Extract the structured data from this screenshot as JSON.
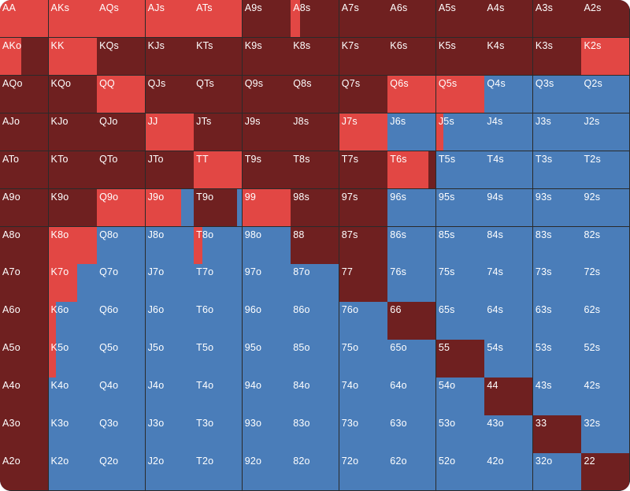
{
  "colors": {
    "raise": "#E24744",
    "call": "#6F2020",
    "fold": "#4A7DB9"
  },
  "hands": [
    [
      {
        "label": "AA",
        "raise": 1,
        "call": 0
      },
      {
        "label": "AKs",
        "raise": 1,
        "call": 0
      },
      {
        "label": "AQs",
        "raise": 1,
        "call": 0
      },
      {
        "label": "AJs",
        "raise": 1,
        "call": 0
      },
      {
        "label": "ATs",
        "raise": 1,
        "call": 0
      },
      {
        "label": "A9s",
        "raise": 0,
        "call": 1
      },
      {
        "label": "A8s",
        "raise": 0.2,
        "call": 0.8
      },
      {
        "label": "A7s",
        "raise": 0,
        "call": 1
      },
      {
        "label": "A6s",
        "raise": 0,
        "call": 1
      },
      {
        "label": "A5s",
        "raise": 0,
        "call": 1
      },
      {
        "label": "A4s",
        "raise": 0,
        "call": 1
      },
      {
        "label": "A3s",
        "raise": 0,
        "call": 1
      },
      {
        "label": "A2s",
        "raise": 0,
        "call": 1
      }
    ],
    [
      {
        "label": "AKo",
        "raise": 0.45,
        "call": 0.55
      },
      {
        "label": "KK",
        "raise": 1,
        "call": 0
      },
      {
        "label": "KQs",
        "raise": 0,
        "call": 1
      },
      {
        "label": "KJs",
        "raise": 0,
        "call": 1
      },
      {
        "label": "KTs",
        "raise": 0,
        "call": 1
      },
      {
        "label": "K9s",
        "raise": 0,
        "call": 1
      },
      {
        "label": "K8s",
        "raise": 0,
        "call": 1
      },
      {
        "label": "K7s",
        "raise": 0,
        "call": 1
      },
      {
        "label": "K6s",
        "raise": 0,
        "call": 1
      },
      {
        "label": "K5s",
        "raise": 0,
        "call": 1
      },
      {
        "label": "K4s",
        "raise": 0,
        "call": 1
      },
      {
        "label": "K3s",
        "raise": 0,
        "call": 1
      },
      {
        "label": "K2s",
        "raise": 1,
        "call": 0
      }
    ],
    [
      {
        "label": "AQo",
        "raise": 0,
        "call": 1
      },
      {
        "label": "KQo",
        "raise": 0,
        "call": 1
      },
      {
        "label": "QQ",
        "raise": 1,
        "call": 0
      },
      {
        "label": "QJs",
        "raise": 0,
        "call": 1
      },
      {
        "label": "QTs",
        "raise": 0,
        "call": 1
      },
      {
        "label": "Q9s",
        "raise": 0,
        "call": 1
      },
      {
        "label": "Q8s",
        "raise": 0,
        "call": 1
      },
      {
        "label": "Q7s",
        "raise": 0,
        "call": 1
      },
      {
        "label": "Q6s",
        "raise": 1,
        "call": 0
      },
      {
        "label": "Q5s",
        "raise": 1,
        "call": 0
      },
      {
        "label": "Q4s",
        "raise": 0,
        "call": 0
      },
      {
        "label": "Q3s",
        "raise": 0,
        "call": 0
      },
      {
        "label": "Q2s",
        "raise": 0,
        "call": 0
      }
    ],
    [
      {
        "label": "AJo",
        "raise": 0,
        "call": 1
      },
      {
        "label": "KJo",
        "raise": 0,
        "call": 1
      },
      {
        "label": "QJo",
        "raise": 0,
        "call": 1
      },
      {
        "label": "JJ",
        "raise": 1,
        "call": 0
      },
      {
        "label": "JTs",
        "raise": 0,
        "call": 1
      },
      {
        "label": "J9s",
        "raise": 0,
        "call": 1
      },
      {
        "label": "J8s",
        "raise": 0,
        "call": 1
      },
      {
        "label": "J7s",
        "raise": 1,
        "call": 0
      },
      {
        "label": "J6s",
        "raise": 0,
        "call": 0
      },
      {
        "label": "J5s",
        "raise": 0.15,
        "call": 0
      },
      {
        "label": "J4s",
        "raise": 0,
        "call": 0
      },
      {
        "label": "J3s",
        "raise": 0,
        "call": 0
      },
      {
        "label": "J2s",
        "raise": 0,
        "call": 0
      }
    ],
    [
      {
        "label": "ATo",
        "raise": 0,
        "call": 1
      },
      {
        "label": "KTo",
        "raise": 0,
        "call": 1
      },
      {
        "label": "QTo",
        "raise": 0,
        "call": 1
      },
      {
        "label": "JTo",
        "raise": 0,
        "call": 1
      },
      {
        "label": "TT",
        "raise": 1,
        "call": 0
      },
      {
        "label": "T9s",
        "raise": 0,
        "call": 1
      },
      {
        "label": "T8s",
        "raise": 0,
        "call": 1
      },
      {
        "label": "T7s",
        "raise": 0,
        "call": 1
      },
      {
        "label": "T6s",
        "raise": 0.85,
        "call": 0.15
      },
      {
        "label": "T5s",
        "raise": 0,
        "call": 0
      },
      {
        "label": "T4s",
        "raise": 0,
        "call": 0
      },
      {
        "label": "T3s",
        "raise": 0,
        "call": 0
      },
      {
        "label": "T2s",
        "raise": 0,
        "call": 0
      }
    ],
    [
      {
        "label": "A9o",
        "raise": 0,
        "call": 1
      },
      {
        "label": "K9o",
        "raise": 0,
        "call": 1
      },
      {
        "label": "Q9o",
        "raise": 1,
        "call": 0
      },
      {
        "label": "J9o",
        "raise": 0.75,
        "call": 0
      },
      {
        "label": "T9o",
        "raise": 0,
        "call": 0.9
      },
      {
        "label": "99",
        "raise": 1,
        "call": 0
      },
      {
        "label": "98s",
        "raise": 0,
        "call": 1
      },
      {
        "label": "97s",
        "raise": 0,
        "call": 1
      },
      {
        "label": "96s",
        "raise": 0,
        "call": 0
      },
      {
        "label": "95s",
        "raise": 0,
        "call": 0
      },
      {
        "label": "94s",
        "raise": 0,
        "call": 0
      },
      {
        "label": "93s",
        "raise": 0,
        "call": 0
      },
      {
        "label": "92s",
        "raise": 0,
        "call": 0
      }
    ],
    [
      {
        "label": "A8o",
        "raise": 0,
        "call": 1
      },
      {
        "label": "K8o",
        "raise": 1,
        "call": 0
      },
      {
        "label": "Q8o",
        "raise": 0,
        "call": 0
      },
      {
        "label": "J8o",
        "raise": 0,
        "call": 0
      },
      {
        "label": "T8o",
        "raise": 0.18,
        "call": 0
      },
      {
        "label": "98o",
        "raise": 0,
        "call": 0
      },
      {
        "label": "88",
        "raise": 0,
        "call": 1
      },
      {
        "label": "87s",
        "raise": 0,
        "call": 1
      },
      {
        "label": "86s",
        "raise": 0,
        "call": 0
      },
      {
        "label": "85s",
        "raise": 0,
        "call": 0
      },
      {
        "label": "84s",
        "raise": 0,
        "call": 0
      },
      {
        "label": "83s",
        "raise": 0,
        "call": 0
      },
      {
        "label": "82s",
        "raise": 0,
        "call": 0
      }
    ],
    [
      {
        "label": "A7o",
        "raise": 0,
        "call": 1
      },
      {
        "label": "K7o",
        "raise": 0.6,
        "call": 0
      },
      {
        "label": "Q7o",
        "raise": 0,
        "call": 0
      },
      {
        "label": "J7o",
        "raise": 0,
        "call": 0
      },
      {
        "label": "T7o",
        "raise": 0,
        "call": 0
      },
      {
        "label": "97o",
        "raise": 0,
        "call": 0
      },
      {
        "label": "87o",
        "raise": 0,
        "call": 0
      },
      {
        "label": "77",
        "raise": 0,
        "call": 1
      },
      {
        "label": "76s",
        "raise": 0,
        "call": 0
      },
      {
        "label": "75s",
        "raise": 0,
        "call": 0
      },
      {
        "label": "74s",
        "raise": 0,
        "call": 0
      },
      {
        "label": "73s",
        "raise": 0,
        "call": 0
      },
      {
        "label": "72s",
        "raise": 0,
        "call": 0
      }
    ],
    [
      {
        "label": "A6o",
        "raise": 0,
        "call": 1
      },
      {
        "label": "K6o",
        "raise": 0.15,
        "call": 0
      },
      {
        "label": "Q6o",
        "raise": 0,
        "call": 0
      },
      {
        "label": "J6o",
        "raise": 0,
        "call": 0
      },
      {
        "label": "T6o",
        "raise": 0,
        "call": 0
      },
      {
        "label": "96o",
        "raise": 0,
        "call": 0
      },
      {
        "label": "86o",
        "raise": 0,
        "call": 0
      },
      {
        "label": "76o",
        "raise": 0,
        "call": 0
      },
      {
        "label": "66",
        "raise": 0,
        "call": 1
      },
      {
        "label": "65s",
        "raise": 0,
        "call": 0
      },
      {
        "label": "64s",
        "raise": 0,
        "call": 0
      },
      {
        "label": "63s",
        "raise": 0,
        "call": 0
      },
      {
        "label": "62s",
        "raise": 0,
        "call": 0
      }
    ],
    [
      {
        "label": "A5o",
        "raise": 0,
        "call": 1
      },
      {
        "label": "K5o",
        "raise": 0.15,
        "call": 0
      },
      {
        "label": "Q5o",
        "raise": 0,
        "call": 0
      },
      {
        "label": "J5o",
        "raise": 0,
        "call": 0
      },
      {
        "label": "T5o",
        "raise": 0,
        "call": 0
      },
      {
        "label": "95o",
        "raise": 0,
        "call": 0
      },
      {
        "label": "85o",
        "raise": 0,
        "call": 0
      },
      {
        "label": "75o",
        "raise": 0,
        "call": 0
      },
      {
        "label": "65o",
        "raise": 0,
        "call": 0
      },
      {
        "label": "55",
        "raise": 0,
        "call": 1
      },
      {
        "label": "54s",
        "raise": 0,
        "call": 0
      },
      {
        "label": "53s",
        "raise": 0,
        "call": 0
      },
      {
        "label": "52s",
        "raise": 0,
        "call": 0
      }
    ],
    [
      {
        "label": "A4o",
        "raise": 0,
        "call": 1
      },
      {
        "label": "K4o",
        "raise": 0,
        "call": 0
      },
      {
        "label": "Q4o",
        "raise": 0,
        "call": 0
      },
      {
        "label": "J4o",
        "raise": 0,
        "call": 0
      },
      {
        "label": "T4o",
        "raise": 0,
        "call": 0
      },
      {
        "label": "94o",
        "raise": 0,
        "call": 0
      },
      {
        "label": "84o",
        "raise": 0,
        "call": 0
      },
      {
        "label": "74o",
        "raise": 0,
        "call": 0
      },
      {
        "label": "64o",
        "raise": 0,
        "call": 0
      },
      {
        "label": "54o",
        "raise": 0,
        "call": 0
      },
      {
        "label": "44",
        "raise": 0,
        "call": 1
      },
      {
        "label": "43s",
        "raise": 0,
        "call": 0
      },
      {
        "label": "42s",
        "raise": 0,
        "call": 0
      }
    ],
    [
      {
        "label": "A3o",
        "raise": 0,
        "call": 1
      },
      {
        "label": "K3o",
        "raise": 0,
        "call": 0
      },
      {
        "label": "Q3o",
        "raise": 0,
        "call": 0
      },
      {
        "label": "J3o",
        "raise": 0,
        "call": 0
      },
      {
        "label": "T3o",
        "raise": 0,
        "call": 0
      },
      {
        "label": "93o",
        "raise": 0,
        "call": 0
      },
      {
        "label": "83o",
        "raise": 0,
        "call": 0
      },
      {
        "label": "73o",
        "raise": 0,
        "call": 0
      },
      {
        "label": "63o",
        "raise": 0,
        "call": 0
      },
      {
        "label": "53o",
        "raise": 0,
        "call": 0
      },
      {
        "label": "43o",
        "raise": 0,
        "call": 0
      },
      {
        "label": "33",
        "raise": 0,
        "call": 1
      },
      {
        "label": "32s",
        "raise": 0,
        "call": 0
      }
    ],
    [
      {
        "label": "A2o",
        "raise": 0,
        "call": 1
      },
      {
        "label": "K2o",
        "raise": 0,
        "call": 0
      },
      {
        "label": "Q2o",
        "raise": 0,
        "call": 0
      },
      {
        "label": "J2o",
        "raise": 0,
        "call": 0
      },
      {
        "label": "T2o",
        "raise": 0,
        "call": 0
      },
      {
        "label": "92o",
        "raise": 0,
        "call": 0
      },
      {
        "label": "82o",
        "raise": 0,
        "call": 0
      },
      {
        "label": "72o",
        "raise": 0,
        "call": 0
      },
      {
        "label": "62o",
        "raise": 0,
        "call": 0
      },
      {
        "label": "52o",
        "raise": 0,
        "call": 0
      },
      {
        "label": "42o",
        "raise": 0,
        "call": 0
      },
      {
        "label": "32o",
        "raise": 0,
        "call": 0
      },
      {
        "label": "22",
        "raise": 0,
        "call": 1
      }
    ]
  ]
}
